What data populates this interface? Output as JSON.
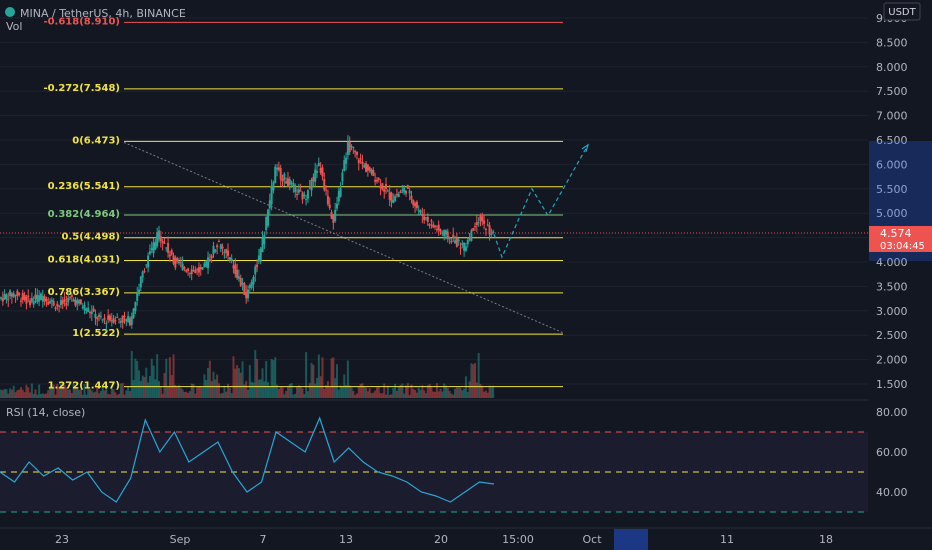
{
  "header": {
    "symbol": "MINA / TetherUS, 4h, BINANCE",
    "vol_label": "Vol",
    "currency": "USDT"
  },
  "price_axis": {
    "ticks": [
      "9.000",
      "8.500",
      "8.000",
      "7.500",
      "7.000",
      "6.500",
      "6.000",
      "5.500",
      "5.000",
      "4.500",
      "4.000",
      "3.500",
      "3.000",
      "2.500",
      "2.000",
      "1.500"
    ],
    "current_price": "4.574",
    "countdown": "03:04:45"
  },
  "rsi": {
    "label": "RSI (14, close)",
    "ticks": [
      "80.00",
      "60.00",
      "40.00"
    ]
  },
  "time_axis": {
    "labels": [
      "23",
      "Sep",
      "7",
      "13",
      "20",
      "15:00",
      "Oct",
      "11",
      "18"
    ]
  },
  "colors": {
    "background": "#131722",
    "up": "#26a69a",
    "down": "#ef5350",
    "fib_line": "#f0e442",
    "fib_red": "#ef5350",
    "rsi_line": "#2aa6d6",
    "projection": "#22a6c2",
    "highlight": "#2962ff"
  },
  "chart_data": [
    {
      "type": "line",
      "title": "",
      "xlabel": "",
      "ylabel": "",
      "ylim": [
        1.2,
        9.2
      ],
      "fib_levels": [
        {
          "label": "-0.618(8.910)",
          "ratio": -0.618,
          "price": 8.91
        },
        {
          "label": "-0.272(7.548)",
          "ratio": -0.272,
          "price": 7.548
        },
        {
          "label": "0(6.473)",
          "ratio": 0,
          "price": 6.473
        },
        {
          "label": "0.236(5.541)",
          "ratio": 0.236,
          "price": 5.541
        },
        {
          "label": "0.382(4.964)",
          "ratio": 0.382,
          "price": 4.964
        },
        {
          "label": "0.5(4.498)",
          "ratio": 0.5,
          "price": 4.498
        },
        {
          "label": "0.618(4.031)",
          "ratio": 0.618,
          "price": 4.031
        },
        {
          "label": "0.786(3.367)",
          "ratio": 0.786,
          "price": 3.367
        },
        {
          "label": "1(2.522)",
          "ratio": 1,
          "price": 2.522
        },
        {
          "label": "1.272(1.447)",
          "ratio": 1.272,
          "price": 1.447
        }
      ],
      "price_path": [
        3.25,
        3.35,
        3.2,
        3.3,
        3.1,
        3.25,
        3.05,
        2.8,
        2.85,
        2.8,
        3.9,
        4.6,
        4.0,
        3.85,
        3.8,
        4.4,
        4.0,
        3.3,
        4.2,
        5.9,
        5.6,
        5.3,
        6.0,
        4.8,
        6.4,
        6.0,
        5.7,
        5.3,
        5.5,
        5.0,
        4.7,
        4.5,
        4.3,
        4.9,
        4.57
      ],
      "projection_path": [
        4.57,
        4.1,
        5.5,
        4.95,
        6.4
      ],
      "trendline": {
        "from": 6.45,
        "to": 2.55
      },
      "current_price": 4.574
    },
    {
      "type": "line",
      "title": "RSI (14, close)",
      "ylim": [
        25,
        85
      ],
      "reference_levels": [
        70,
        50,
        30
      ],
      "values": [
        50,
        45,
        55,
        48,
        52,
        46,
        50,
        40,
        35,
        47,
        76,
        60,
        70,
        55,
        60,
        65,
        50,
        40,
        45,
        70,
        65,
        60,
        77,
        55,
        62,
        55,
        50,
        48,
        45,
        40,
        38,
        35,
        40,
        45,
        44
      ]
    }
  ]
}
